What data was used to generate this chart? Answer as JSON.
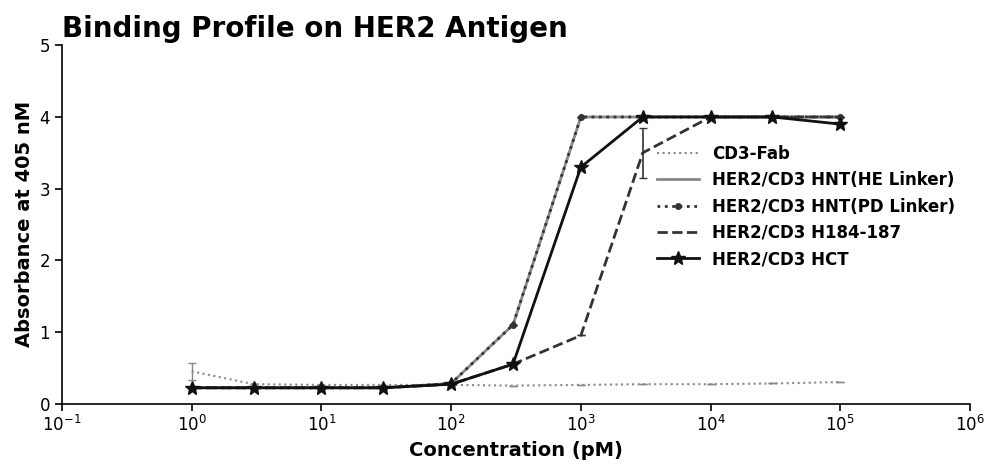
{
  "title": "Binding Profile on HER2 Antigen",
  "xlabel": "Concentration (pM)",
  "ylabel": "Absorbance at 405 nM",
  "xlim_log": [
    -1,
    6
  ],
  "ylim": [
    0,
    5
  ],
  "yticks": [
    0,
    1,
    2,
    3,
    4,
    5
  ],
  "xtick_labels": [
    "10⁻¹",
    "10⁰",
    "10¹",
    "10²",
    "10³",
    "10⁴",
    "10⁵",
    "10⁶"
  ],
  "xtick_values": [
    -1,
    0,
    1,
    2,
    3,
    4,
    5,
    6
  ],
  "cd3fab": {
    "x": [
      1,
      3,
      10,
      30,
      100,
      300,
      1000,
      3000,
      10000,
      30000,
      100000
    ],
    "y": [
      0.45,
      0.27,
      0.26,
      0.26,
      0.26,
      0.25,
      0.26,
      0.27,
      0.27,
      0.28,
      0.3
    ],
    "yerr": [
      0.12,
      0.0,
      0.0,
      0.0,
      0.0,
      0.0,
      0.0,
      0.0,
      0.0,
      0.0,
      0.0
    ],
    "color": "#888888",
    "linestyle": "dotted",
    "linewidth": 1.5,
    "marker": null,
    "label": "CD3-Fab"
  },
  "her2_he": {
    "x": [
      1,
      3,
      10,
      30,
      100,
      300,
      1000,
      3000,
      10000,
      30000,
      100000
    ],
    "y": [
      0.22,
      0.22,
      0.22,
      0.22,
      0.28,
      1.1,
      4.0,
      4.0,
      4.0,
      4.0,
      4.0
    ],
    "yerr": [
      0.0,
      0.0,
      0.0,
      0.0,
      0.0,
      0.0,
      0.0,
      0.0,
      0.0,
      0.0,
      0.0
    ],
    "color": "#888888",
    "linestyle": "solid",
    "linewidth": 2.0,
    "marker": null,
    "label": "HER2/CD3 HNT(HE Linker)"
  },
  "her2_pd": {
    "x": [
      1,
      3,
      10,
      30,
      100,
      300,
      1000,
      3000,
      10000,
      30000,
      100000
    ],
    "y": [
      0.22,
      0.22,
      0.22,
      0.22,
      0.28,
      1.1,
      4.0,
      4.0,
      4.0,
      4.0,
      4.0
    ],
    "yerr": [
      0.0,
      0.0,
      0.0,
      0.0,
      0.0,
      0.0,
      0.0,
      0.0,
      0.0,
      0.0,
      0.0
    ],
    "color": "#333333",
    "linestyle": "dotted",
    "linewidth": 2.0,
    "marker": "o",
    "markersize": 4,
    "label": "HER2/CD3 HNT(PD Linker)"
  },
  "her2_h184": {
    "x": [
      1,
      3,
      10,
      30,
      100,
      300,
      1000,
      3000,
      10000,
      30000,
      100000
    ],
    "y": [
      0.22,
      0.22,
      0.22,
      0.22,
      0.27,
      0.55,
      0.95,
      3.5,
      4.0,
      4.0,
      4.0
    ],
    "yerr": [
      0.0,
      0.0,
      0.0,
      0.0,
      0.0,
      0.0,
      0.0,
      0.35,
      0.0,
      0.0,
      0.0
    ],
    "color": "#333333",
    "linestyle": "dashed",
    "linewidth": 2.0,
    "marker": null,
    "label": "HER2/CD3 H184-187"
  },
  "her2_hct": {
    "x": [
      1,
      3,
      10,
      30,
      100,
      300,
      1000,
      3000,
      10000,
      30000,
      100000
    ],
    "y": [
      0.22,
      0.22,
      0.22,
      0.22,
      0.27,
      0.55,
      3.3,
      4.0,
      4.0,
      4.0,
      3.9
    ],
    "yerr": [
      0.0,
      0.0,
      0.0,
      0.0,
      0.0,
      0.0,
      0.0,
      0.0,
      0.0,
      0.0,
      0.0
    ],
    "color": "#111111",
    "linestyle": "solid",
    "linewidth": 2.0,
    "marker": "*",
    "markersize": 10,
    "label": "HER2/CD3 HCT"
  },
  "title_fontsize": 20,
  "axis_label_fontsize": 14,
  "tick_fontsize": 12,
  "legend_fontsize": 12,
  "background_color": "#ffffff"
}
